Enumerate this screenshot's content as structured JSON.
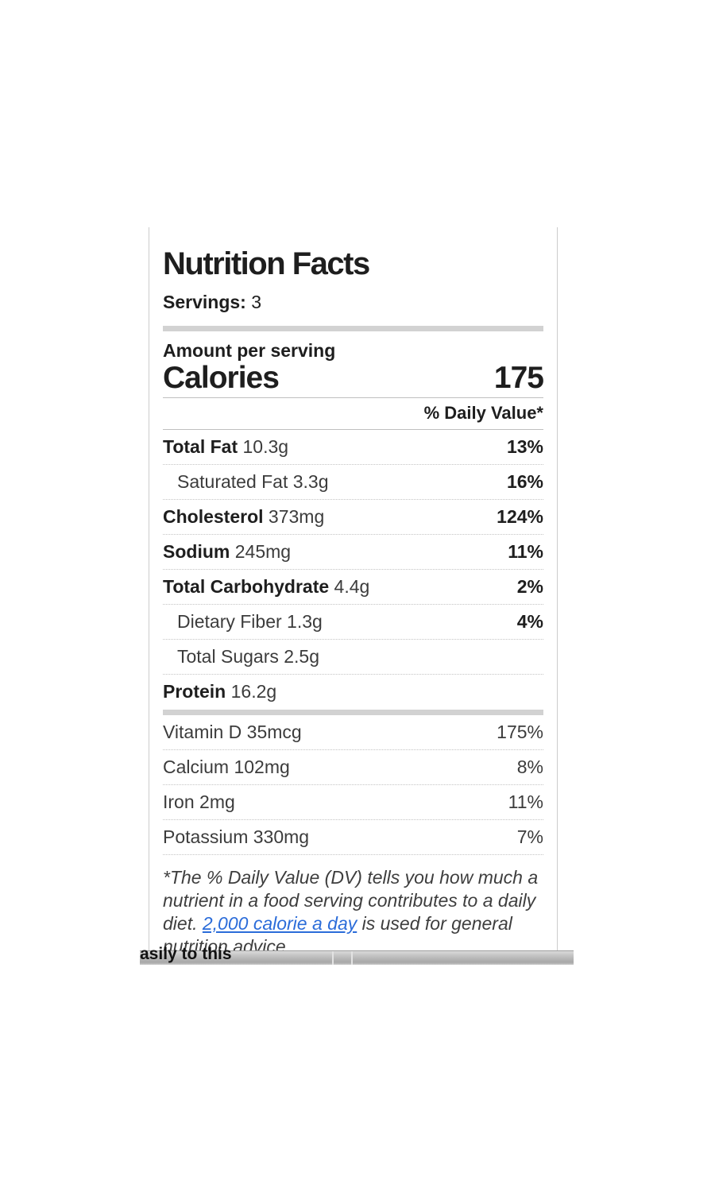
{
  "label": {
    "title": "Nutrition Facts",
    "servings_label": "Servings:",
    "servings_value": "3",
    "amount_per_serving": "Amount per serving",
    "calories_label": "Calories",
    "calories_value": "175",
    "daily_value_header": "% Daily Value*",
    "nutrients": [
      {
        "name": "Total Fat",
        "amount": "10.3g",
        "dv": "13%",
        "bold": true,
        "indent": false
      },
      {
        "name": "Saturated Fat",
        "amount": "3.3g",
        "dv": "16%",
        "bold": false,
        "indent": true
      },
      {
        "name": "Cholesterol",
        "amount": "373mg",
        "dv": "124%",
        "bold": true,
        "indent": false
      },
      {
        "name": "Sodium",
        "amount": "245mg",
        "dv": "11%",
        "bold": true,
        "indent": false
      },
      {
        "name": "Total Carbohydrate",
        "amount": "4.4g",
        "dv": "2%",
        "bold": true,
        "indent": false
      },
      {
        "name": "Dietary Fiber",
        "amount": "1.3g",
        "dv": "4%",
        "bold": false,
        "indent": true
      },
      {
        "name": "Total Sugars",
        "amount": "2.5g",
        "dv": "",
        "bold": false,
        "indent": true
      },
      {
        "name": "Protein",
        "amount": "16.2g",
        "dv": "",
        "bold": true,
        "indent": false
      }
    ],
    "vitamins": [
      {
        "name": "Vitamin D",
        "amount": "35mcg",
        "dv": "175%"
      },
      {
        "name": "Calcium",
        "amount": "102mg",
        "dv": "8%"
      },
      {
        "name": "Iron",
        "amount": "2mg",
        "dv": "11%"
      },
      {
        "name": "Potassium",
        "amount": "330mg",
        "dv": "7%"
      }
    ],
    "footnote": {
      "before_link": "*The % Daily Value (DV) tells you how much a nutrient in a food serving contributes to a daily diet. ",
      "link_text": "2,000 calorie a day",
      "after_link": " is used for general nutrition advice."
    }
  },
  "page": {
    "background_text": "asily to this"
  },
  "colors": {
    "link_blue": "#2b6cd9",
    "thick_divider_gray": "#d2d2d2",
    "panel_border_gray": "#cccccc",
    "text_primary": "#1e1e1e",
    "text_secondary": "#3c3c3c",
    "scrollbar_gray": "#b5b5b5"
  }
}
